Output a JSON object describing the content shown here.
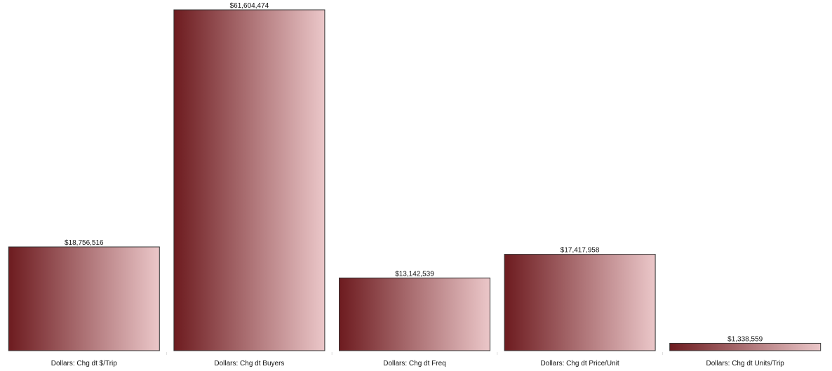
{
  "chart_data": {
    "type": "bar",
    "categories": [
      "Dollars: Chg dt $/Trip",
      "Dollars: Chg dt Buyers",
      "Dollars: Chg dt Freq",
      "Dollars: Chg dt Price/Unit",
      "Dollars: Chg dt Units/Trip"
    ],
    "values": [
      18756516,
      61604474,
      13142539,
      17417958,
      1338559
    ],
    "value_labels": [
      "$18,756,516",
      "$61,604,474",
      "$13,142,539",
      "$17,417,958",
      "$1,338,559"
    ],
    "gradient": [
      "#6d1b1f",
      "#ebc7c9"
    ]
  }
}
